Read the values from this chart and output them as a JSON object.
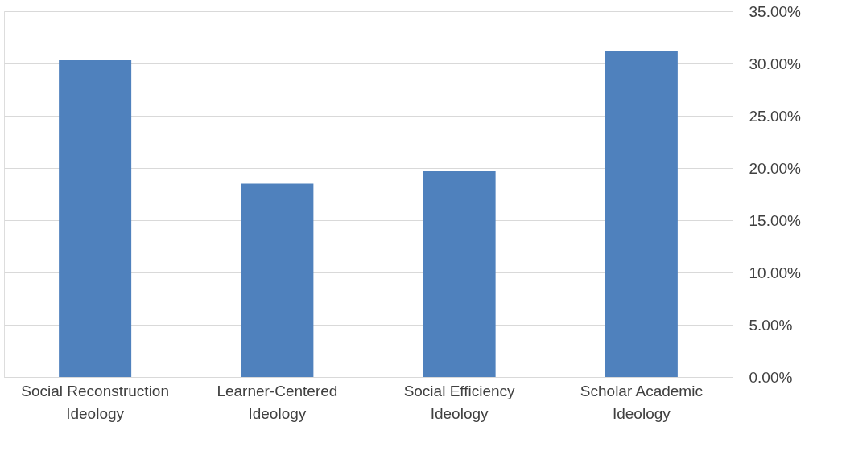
{
  "chart_data": {
    "type": "bar",
    "categories": [
      "Social Reconstruction Ideology",
      "Learner-Centered Ideology",
      "Social Efficiency Ideology",
      "Scholar Academic Ideology"
    ],
    "values": [
      30.3,
      18.5,
      19.7,
      31.2
    ],
    "color": "#4f81bd",
    "ylim": [
      0,
      35
    ],
    "yticks": [
      {
        "value": 0,
        "label": "0.00%"
      },
      {
        "value": 5,
        "label": "5.00%"
      },
      {
        "value": 10,
        "label": "10.00%"
      },
      {
        "value": 15,
        "label": "15.00%"
      },
      {
        "value": 20,
        "label": "20.00%"
      },
      {
        "value": 25,
        "label": "25.00%"
      },
      {
        "value": 30,
        "label": "30.00%"
      },
      {
        "value": 35,
        "label": "35.00%"
      }
    ],
    "grid": "y"
  }
}
